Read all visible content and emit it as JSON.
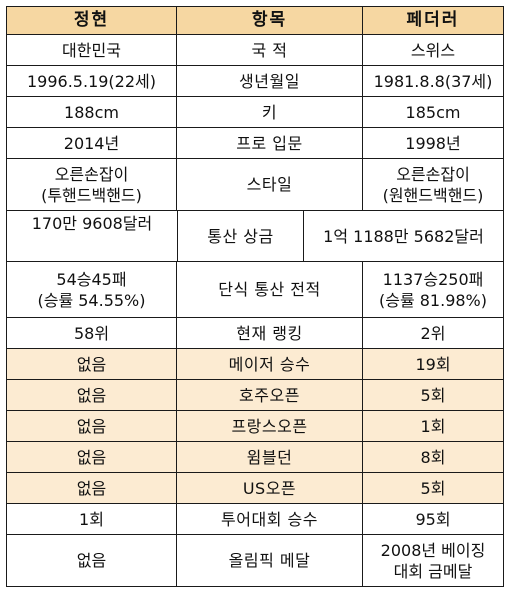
{
  "header": {
    "col1": "정현",
    "col2": "항목",
    "col3": "페더러"
  },
  "rows": [
    {
      "a": "대한민국",
      "item": "국  적",
      "b": "스위스"
    },
    {
      "a": "1996.5.19(22세)",
      "item": "생년월일",
      "b": "1981.8.8(37세)"
    },
    {
      "a": "188cm",
      "item": "키",
      "b": "185cm"
    },
    {
      "a": "2014년",
      "item": "프로 입문",
      "b": "1998년"
    },
    {
      "a1": "오른손잡이",
      "a2": "(투핸드백핸드)",
      "item": "스타일",
      "b1": "오른손잡이",
      "b2": "(원핸드백핸드)"
    },
    {
      "a": "170만  9608달러",
      "item": "통산 상금",
      "b": "1억 1188만 5682달러"
    },
    {
      "a1": "54승45패",
      "a2": "(승률 54.55%)",
      "item": "단식 통산 전적",
      "b1": "1137승250패",
      "b2": "(승률 81.98%)"
    },
    {
      "a": "58위",
      "item": "현재 랭킹",
      "b": "2위"
    },
    {
      "a": "없음",
      "item": "메이저 승수",
      "b": "19회"
    },
    {
      "a": "없음",
      "item": "호주오픈",
      "b": "5회"
    },
    {
      "a": "없음",
      "item": "프랑스오픈",
      "b": "1회"
    },
    {
      "a": "없음",
      "item": "윔블던",
      "b": "8회"
    },
    {
      "a": "없음",
      "item": "US오픈",
      "b": "5회"
    },
    {
      "a": "1회",
      "item": "투어대회 승수",
      "b": "95회"
    },
    {
      "a": "없음",
      "item": "올림픽 메달",
      "b1": "2008년 베이징",
      "b2": "대회 금메달"
    }
  ],
  "colors": {
    "header_bg": "#f6d7a2",
    "highlight_bg": "#fcebd2",
    "border": "#1a1a1a"
  }
}
